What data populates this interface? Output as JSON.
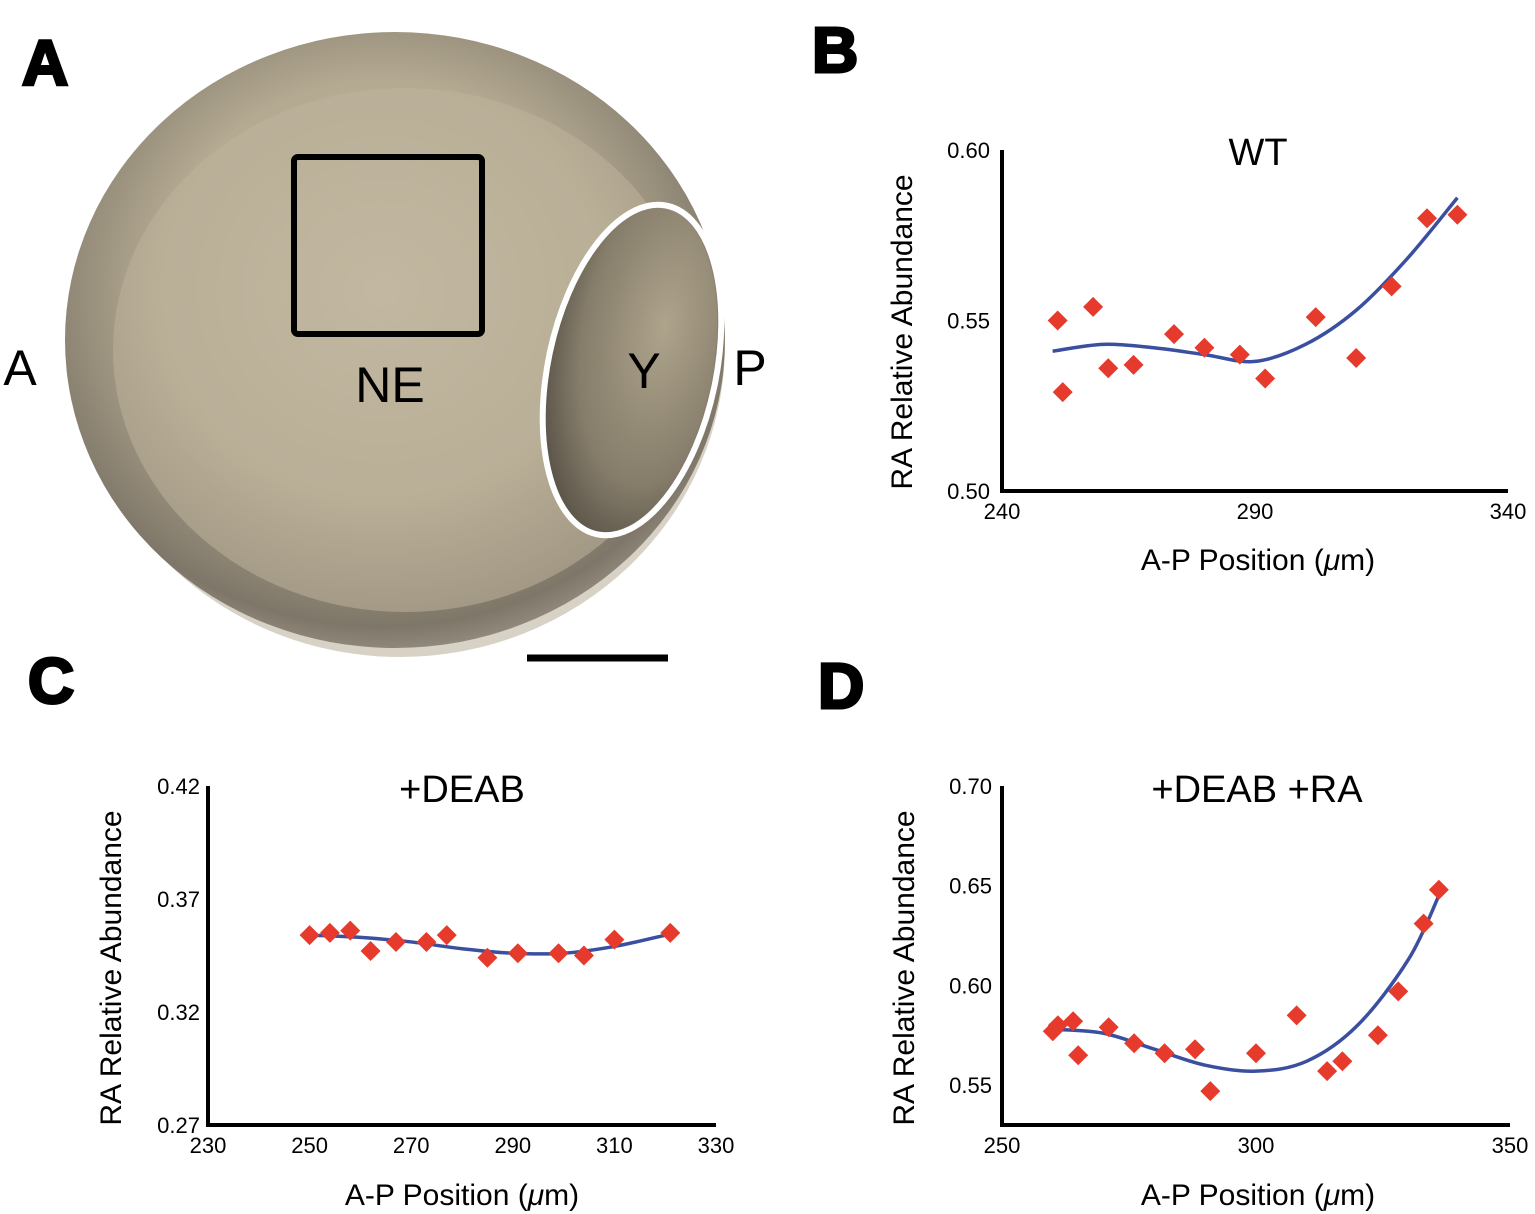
{
  "panels": {
    "A": {
      "letter": "A",
      "labels": {
        "anterior": "A",
        "posterior": "P",
        "neural_ectoderm": "NE",
        "yolk": "Y"
      }
    },
    "B": {
      "letter": "B"
    },
    "C": {
      "letter": "C"
    },
    "D": {
      "letter": "D"
    }
  },
  "colors": {
    "marker": "#e53a2c",
    "fit_line": "#3b4fa0",
    "embryo_body": "#bdb29a",
    "yolk_outline": "#ffffff"
  },
  "chart_data": [
    {
      "id": "B",
      "type": "scatter",
      "title": "WT",
      "xlabel_prefix": "A-P Position (",
      "xlabel_unit": "μ",
      "xlabel_suffix": "m)",
      "ylabel": "RA Relative Abundance",
      "xlim": [
        240,
        340
      ],
      "ylim": [
        0.5,
        0.6
      ],
      "xticks": [
        "240",
        "290",
        "340"
      ],
      "yticks": [
        "0.50",
        "0.55",
        "0.60"
      ],
      "points": [
        [
          251,
          0.55
        ],
        [
          252,
          0.529
        ],
        [
          258,
          0.554
        ],
        [
          261,
          0.536
        ],
        [
          266,
          0.537
        ],
        [
          274,
          0.546
        ],
        [
          280,
          0.542
        ],
        [
          287,
          0.54
        ],
        [
          292,
          0.533
        ],
        [
          302,
          0.551
        ],
        [
          310,
          0.539
        ],
        [
          317,
          0.56
        ],
        [
          324,
          0.58
        ],
        [
          330,
          0.581
        ]
      ],
      "fit": [
        [
          250,
          0.541
        ],
        [
          260,
          0.543
        ],
        [
          270,
          0.542
        ],
        [
          280,
          0.54
        ],
        [
          290,
          0.538
        ],
        [
          300,
          0.543
        ],
        [
          310,
          0.553
        ],
        [
          320,
          0.568
        ],
        [
          330,
          0.586
        ]
      ]
    },
    {
      "id": "C",
      "type": "scatter",
      "title": "+DEAB",
      "xlabel_prefix": "A-P Position (",
      "xlabel_unit": "μ",
      "xlabel_suffix": "m)",
      "ylabel": "RA Relative Abundance",
      "xlim": [
        230,
        330
      ],
      "ylim": [
        0.27,
        0.42
      ],
      "xticks": [
        "230",
        "250",
        "270",
        "290",
        "310",
        "330"
      ],
      "yticks": [
        "0.27",
        "0.32",
        "0.37",
        "0.42"
      ],
      "points": [
        [
          250,
          0.354
        ],
        [
          254,
          0.355
        ],
        [
          258,
          0.356
        ],
        [
          262,
          0.347
        ],
        [
          267,
          0.351
        ],
        [
          273,
          0.351
        ],
        [
          277,
          0.354
        ],
        [
          285,
          0.344
        ],
        [
          291,
          0.346
        ],
        [
          299,
          0.346
        ],
        [
          304,
          0.345
        ],
        [
          310,
          0.352
        ],
        [
          321,
          0.355
        ]
      ],
      "fit": [
        [
          250,
          0.354
        ],
        [
          260,
          0.353
        ],
        [
          270,
          0.351
        ],
        [
          280,
          0.348
        ],
        [
          290,
          0.346
        ],
        [
          300,
          0.346
        ],
        [
          310,
          0.349
        ],
        [
          320,
          0.354
        ]
      ]
    },
    {
      "id": "D",
      "type": "scatter",
      "title": "+DEAB +RA",
      "xlabel_prefix": "A-P Position (",
      "xlabel_unit": "μ",
      "xlabel_suffix": "m)",
      "ylabel": "RA Relative Abundance",
      "xlim": [
        250,
        350
      ],
      "ylim": [
        0.53,
        0.7
      ],
      "xticks": [
        "250",
        "300",
        "350"
      ],
      "yticks": [
        "0.55",
        "0.60",
        "0.65",
        "0.70"
      ],
      "points": [
        [
          260,
          0.577
        ],
        [
          261,
          0.58
        ],
        [
          264,
          0.582
        ],
        [
          265,
          0.565
        ],
        [
          271,
          0.579
        ],
        [
          276,
          0.571
        ],
        [
          282,
          0.566
        ],
        [
          288,
          0.568
        ],
        [
          291,
          0.547
        ],
        [
          300,
          0.566
        ],
        [
          308,
          0.585
        ],
        [
          314,
          0.557
        ],
        [
          317,
          0.562
        ],
        [
          324,
          0.575
        ],
        [
          328,
          0.597
        ],
        [
          333,
          0.631
        ],
        [
          336,
          0.648
        ]
      ],
      "fit": [
        [
          260,
          0.578
        ],
        [
          270,
          0.576
        ],
        [
          280,
          0.568
        ],
        [
          290,
          0.56
        ],
        [
          300,
          0.557
        ],
        [
          310,
          0.562
        ],
        [
          320,
          0.58
        ],
        [
          330,
          0.613
        ],
        [
          336,
          0.645
        ]
      ]
    }
  ]
}
